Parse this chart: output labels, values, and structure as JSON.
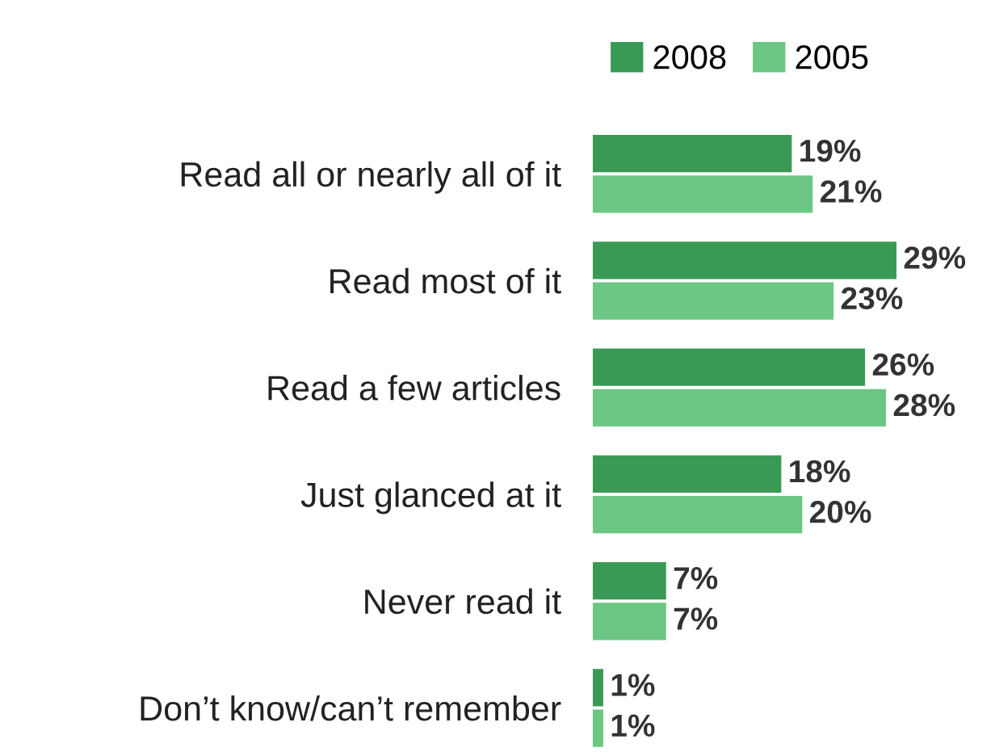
{
  "chart_data": {
    "type": "bar",
    "orientation": "horizontal",
    "categories": [
      "Read all or nearly all of it",
      "Read most of it",
      "Read a few articles",
      "Just glanced at it",
      "Never read it",
      "Don’t know/can’t remember"
    ],
    "series": [
      {
        "name": "2008",
        "color": "#3a9a55",
        "values": [
          19,
          29,
          26,
          18,
          7,
          1
        ],
        "value_labels": [
          "19%",
          "29%",
          "26%",
          "18%",
          "7%",
          "1%"
        ]
      },
      {
        "name": "2005",
        "color": "#6cc784",
        "values": [
          21,
          23,
          28,
          20,
          7,
          1
        ],
        "value_labels": [
          "21%",
          "23%",
          "28%",
          "20%",
          "7%",
          "1%"
        ]
      }
    ],
    "legend": "top",
    "grid": false
  }
}
